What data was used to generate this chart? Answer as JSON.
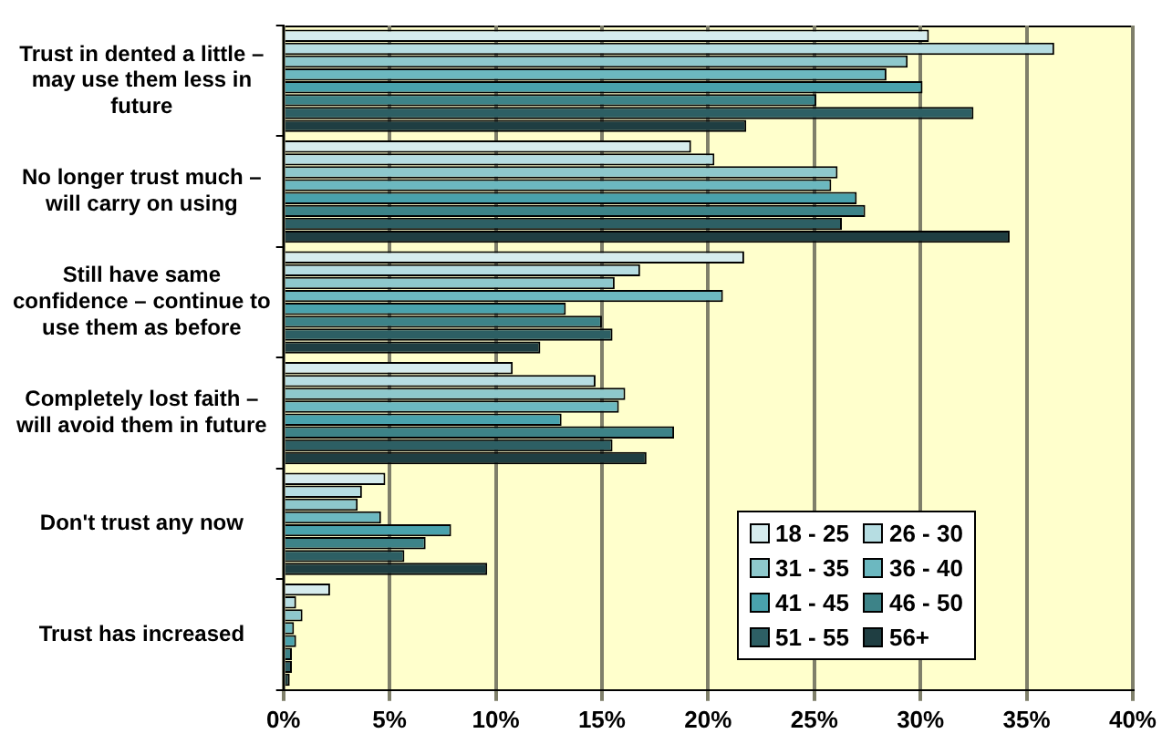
{
  "chart_data": {
    "type": "bar",
    "orientation": "horizontal",
    "categories": [
      "Trust in dented a little – may use them less in future",
      "No longer trust much – will carry on using",
      "Still have same confidence – continue to use them as before",
      "Completely lost faith – will avoid them in future",
      "Don't trust any now",
      "Trust has increased"
    ],
    "series": [
      {
        "name": "18 - 25",
        "color": "#d6ecee",
        "values": [
          30.4,
          19.2,
          21.7,
          10.8,
          4.8,
          2.2
        ]
      },
      {
        "name": "26 - 30",
        "color": "#b6dde2",
        "values": [
          36.3,
          20.3,
          16.8,
          14.7,
          3.7,
          0.6
        ]
      },
      {
        "name": "31 - 35",
        "color": "#8ec8cc",
        "values": [
          29.4,
          26.1,
          15.6,
          16.1,
          3.5,
          0.9
        ]
      },
      {
        "name": "36 - 40",
        "color": "#6cb8c0",
        "values": [
          28.4,
          25.8,
          20.7,
          15.8,
          4.6,
          0.5
        ]
      },
      {
        "name": "41 - 45",
        "color": "#49a2ad",
        "values": [
          30.1,
          27.0,
          13.3,
          13.1,
          7.9,
          0.6
        ]
      },
      {
        "name": "46 - 50",
        "color": "#3d8388",
        "values": [
          25.1,
          27.4,
          15.0,
          18.4,
          6.7,
          0.4
        ]
      },
      {
        "name": "51 - 55",
        "color": "#2d5f64",
        "values": [
          32.5,
          26.3,
          15.5,
          15.5,
          5.7,
          0.4
        ]
      },
      {
        "name": "56+",
        "color": "#1f3e42",
        "values": [
          21.8,
          34.2,
          12.1,
          17.1,
          9.6,
          0.3
        ]
      }
    ],
    "xlim": [
      0,
      40
    ],
    "xticks": [
      {
        "value": 0,
        "label": "0%"
      },
      {
        "value": 5,
        "label": "5%"
      },
      {
        "value": 10,
        "label": "10%"
      },
      {
        "value": 15,
        "label": "15%"
      },
      {
        "value": 20,
        "label": "20%"
      },
      {
        "value": 25,
        "label": "25%"
      },
      {
        "value": 30,
        "label": "30%"
      },
      {
        "value": 35,
        "label": "35%"
      },
      {
        "value": 40,
        "label": "40%"
      }
    ],
    "grid": "x",
    "legend": "bottom right"
  }
}
